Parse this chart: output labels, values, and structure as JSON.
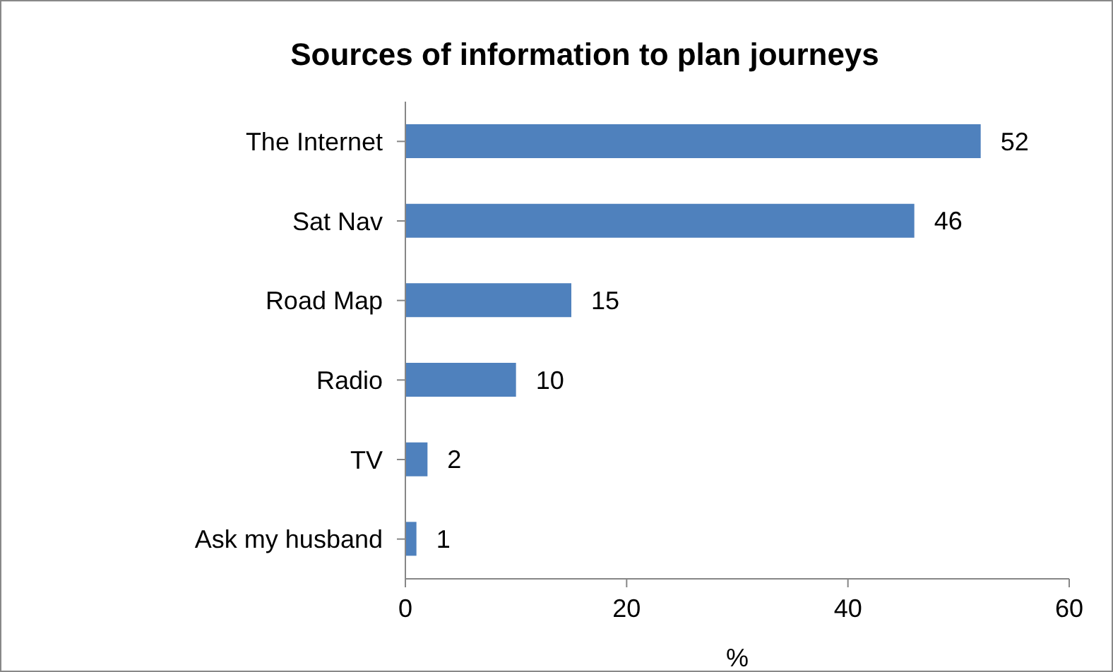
{
  "chart_data": {
    "type": "bar",
    "orientation": "horizontal",
    "title": "Sources of information to plan journeys",
    "xlabel": "%",
    "categories": [
      "The Internet",
      "Sat Nav",
      "Road Map",
      "Radio",
      "TV",
      "Ask my husband"
    ],
    "values": [
      52,
      46,
      15,
      10,
      2,
      1
    ],
    "color": "#4f81bd",
    "xlim": [
      0,
      60
    ],
    "xticks": [
      0,
      20,
      40,
      60
    ],
    "grid": false,
    "data_labels": true
  }
}
